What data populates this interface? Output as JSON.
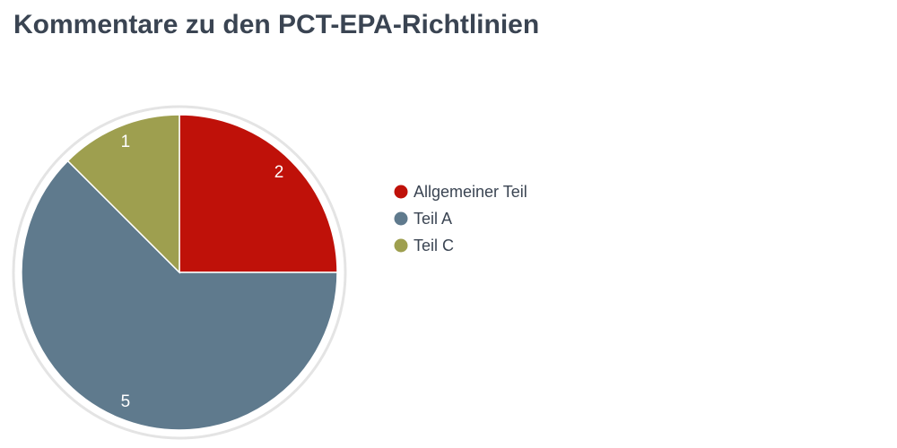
{
  "chart_data": {
    "type": "pie",
    "title": "Kommentare zu den PCT-EPA-Richtlinien",
    "categories": [
      "Allgemeiner Teil",
      "Teil A",
      "Teil C"
    ],
    "values": [
      2,
      5,
      1
    ],
    "colors": [
      "#bf1109",
      "#5f7a8d",
      "#9e9f4f"
    ]
  }
}
